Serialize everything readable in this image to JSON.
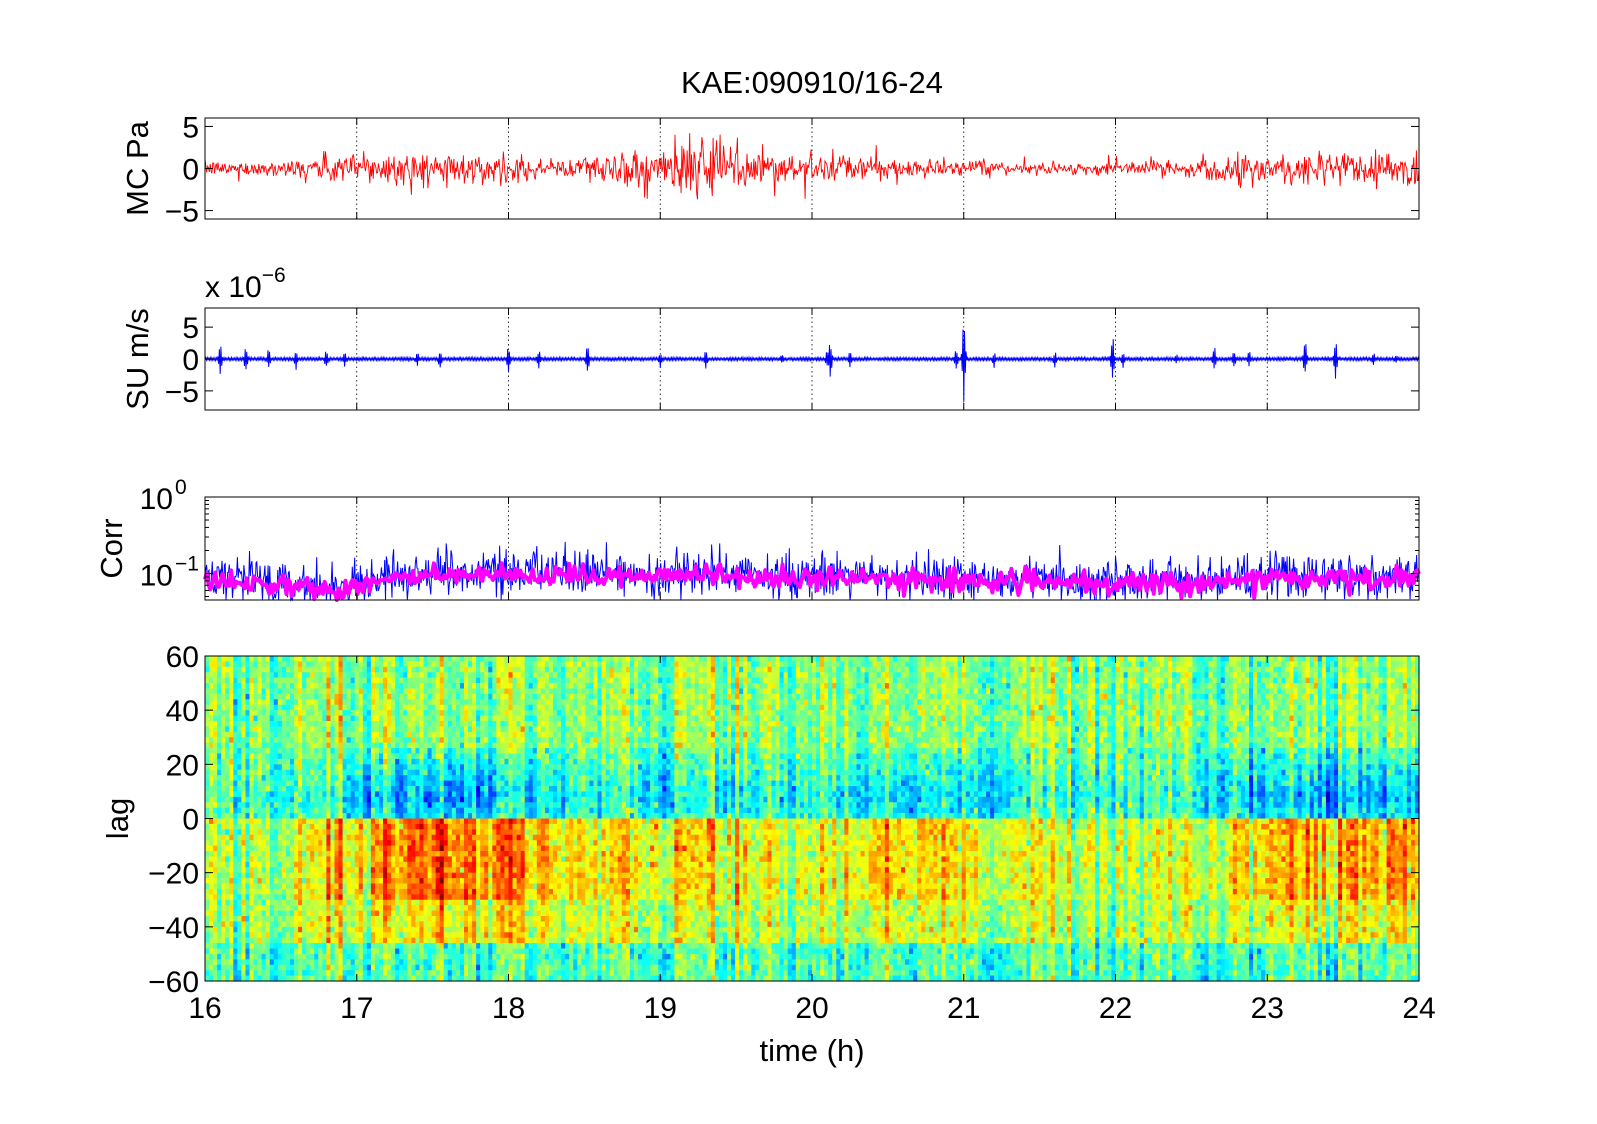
{
  "figure": {
    "title": "KAE:090910/16-24",
    "xlabel": "time (h)",
    "x_tick_labels": [
      "16",
      "17",
      "18",
      "19",
      "20",
      "21",
      "22",
      "23",
      "24"
    ]
  },
  "chart_data": [
    {
      "type": "line",
      "panel": "mc",
      "ylabel": "MC Pa",
      "xlim": [
        16,
        24
      ],
      "ylim": [
        -6,
        6
      ],
      "y_ticks": [
        -5,
        0,
        5
      ],
      "y_tick_labels": [
        "−5",
        "0",
        "5"
      ],
      "x_grid": "dotted",
      "series": [
        {
          "color": "#ff0000",
          "x": [
            16,
            16.5,
            16.75,
            17,
            17.5,
            18,
            18.25,
            18.5,
            18.75,
            19,
            19.25,
            19.5,
            19.75,
            20,
            20.5,
            21,
            21.5,
            22,
            22.5,
            23,
            23.5,
            24
          ],
          "envelope": [
            0.9,
            1.0,
            1.8,
            2.3,
            2.1,
            1.6,
            1.1,
            1.7,
            2.4,
            3.0,
            3.6,
            3.9,
            2.6,
            1.8,
            1.5,
            0.9,
            0.7,
            0.8,
            1.2,
            2.2,
            2.4,
            2.5
          ]
        }
      ]
    },
    {
      "type": "line",
      "panel": "su",
      "ylabel": "SU m/s",
      "multiplier": "x 10",
      "multiplier_exp": "−6",
      "xlim": [
        16,
        24
      ],
      "ylim": [
        -8,
        8
      ],
      "y_ticks": [
        -5,
        0,
        5
      ],
      "y_tick_labels": [
        "−5",
        "0",
        "5"
      ],
      "x_grid": "dotted",
      "series": [
        {
          "color": "#0000ff",
          "baseline_amplitude": 0.25,
          "bursts": [
            {
              "t": 16.1,
              "a": 3.0
            },
            {
              "t": 16.27,
              "a": 2.5
            },
            {
              "t": 16.42,
              "a": 2.0
            },
            {
              "t": 16.6,
              "a": 1.8
            },
            {
              "t": 16.8,
              "a": 1.8
            },
            {
              "t": 16.92,
              "a": 1.2
            },
            {
              "t": 17.4,
              "a": 1.4
            },
            {
              "t": 17.55,
              "a": 2.0
            },
            {
              "t": 18.0,
              "a": 2.5
            },
            {
              "t": 18.2,
              "a": 2.0
            },
            {
              "t": 18.52,
              "a": 2.8
            },
            {
              "t": 19.0,
              "a": 1.5
            },
            {
              "t": 19.3,
              "a": 1.5
            },
            {
              "t": 19.8,
              "a": 1.0
            },
            {
              "t": 20.1,
              "a": 1.5
            },
            {
              "t": 20.12,
              "a": 3.5
            },
            {
              "t": 20.25,
              "a": 1.5
            },
            {
              "t": 20.95,
              "a": 2.0
            },
            {
              "t": 21.0,
              "a": 7.8
            },
            {
              "t": 21.2,
              "a": 1.5
            },
            {
              "t": 21.6,
              "a": 1.5
            },
            {
              "t": 21.98,
              "a": 4.5
            },
            {
              "t": 22.05,
              "a": 1.5
            },
            {
              "t": 22.4,
              "a": 1.2
            },
            {
              "t": 22.65,
              "a": 2.5
            },
            {
              "t": 22.78,
              "a": 2.0
            },
            {
              "t": 22.88,
              "a": 1.5
            },
            {
              "t": 23.25,
              "a": 3.5
            },
            {
              "t": 23.45,
              "a": 3.5
            },
            {
              "t": 23.7,
              "a": 1.5
            },
            {
              "t": 23.85,
              "a": 1.0
            }
          ]
        }
      ]
    },
    {
      "type": "line",
      "panel": "corr",
      "ylabel": "Corr",
      "yscale": "log",
      "xlim": [
        16,
        24
      ],
      "ylim": [
        0.045,
        1.0
      ],
      "y_ticks": [
        0.1,
        1.0
      ],
      "y_tick_labels": [
        {
          "base": "10",
          "exp": "−1"
        },
        {
          "base": "10",
          "exp": "0"
        }
      ],
      "x_grid": "dotted",
      "series": [
        {
          "color": "#0000ff",
          "x": [
            16,
            16.5,
            16.9,
            17.0,
            17.5,
            18,
            18.5,
            19,
            19.5,
            20,
            20.5,
            21,
            21.5,
            21.95,
            22.02,
            22.5,
            23,
            23.5,
            24
          ],
          "typical": [
            0.085,
            0.08,
            0.06,
            0.08,
            0.1,
            0.1,
            0.1,
            0.1,
            0.095,
            0.09,
            0.09,
            0.085,
            0.085,
            0.07,
            0.08,
            0.08,
            0.09,
            0.09,
            0.09
          ],
          "peak": [
            0.16,
            0.14,
            0.11,
            0.2,
            0.24,
            0.2,
            0.22,
            0.24,
            0.2,
            0.2,
            0.2,
            0.18,
            0.16,
            0.12,
            0.15,
            0.16,
            0.2,
            0.2,
            0.2
          ]
        },
        {
          "color": "#ff00ff",
          "x": [
            16,
            16.5,
            16.9,
            17.0,
            17.5,
            18,
            18.5,
            19,
            19.5,
            20,
            20.5,
            21,
            21.5,
            21.95,
            22.02,
            22.5,
            23,
            23.5,
            24
          ],
          "typical": [
            0.08,
            0.075,
            0.055,
            0.075,
            0.095,
            0.09,
            0.09,
            0.1,
            0.09,
            0.085,
            0.085,
            0.08,
            0.08,
            0.065,
            0.075,
            0.075,
            0.085,
            0.085,
            0.085
          ]
        }
      ]
    },
    {
      "type": "heatmap",
      "panel": "lag",
      "ylabel": "lag",
      "xlim": [
        16,
        24
      ],
      "ylim": [
        -60,
        60
      ],
      "y_ticks": [
        -60,
        -40,
        -20,
        0,
        20,
        40,
        60
      ],
      "y_tick_labels": [
        "−60",
        "−40",
        "−20",
        "0",
        "20",
        "40",
        "60"
      ],
      "colormap": "jet",
      "color_range": [
        -1,
        1
      ],
      "negative_lag_band": {
        "lag": [
          -30,
          0
        ],
        "x": [
          16,
          16.5,
          17,
          17.5,
          18,
          18.5,
          19,
          19.5,
          20,
          20.5,
          21,
          21.5,
          22,
          22.5,
          23,
          23.5,
          24
        ],
        "level": [
          0.05,
          0.1,
          0.3,
          0.55,
          0.45,
          0.25,
          0.25,
          0.2,
          0.15,
          0.3,
          0.25,
          0.15,
          0.1,
          0.15,
          0.35,
          0.4,
          0.35
        ]
      },
      "positive_lag_band": {
        "lag": [
          0,
          25
        ],
        "x": [
          16,
          16.5,
          17,
          17.5,
          18,
          18.5,
          19,
          19.5,
          20,
          20.5,
          21,
          21.5,
          22,
          22.5,
          23,
          23.5,
          24
        ],
        "level": [
          -0.1,
          -0.15,
          -0.35,
          -0.5,
          -0.4,
          -0.2,
          -0.3,
          -0.3,
          -0.2,
          -0.35,
          -0.35,
          -0.2,
          -0.15,
          -0.2,
          -0.4,
          -0.45,
          -0.45
        ]
      }
    }
  ]
}
